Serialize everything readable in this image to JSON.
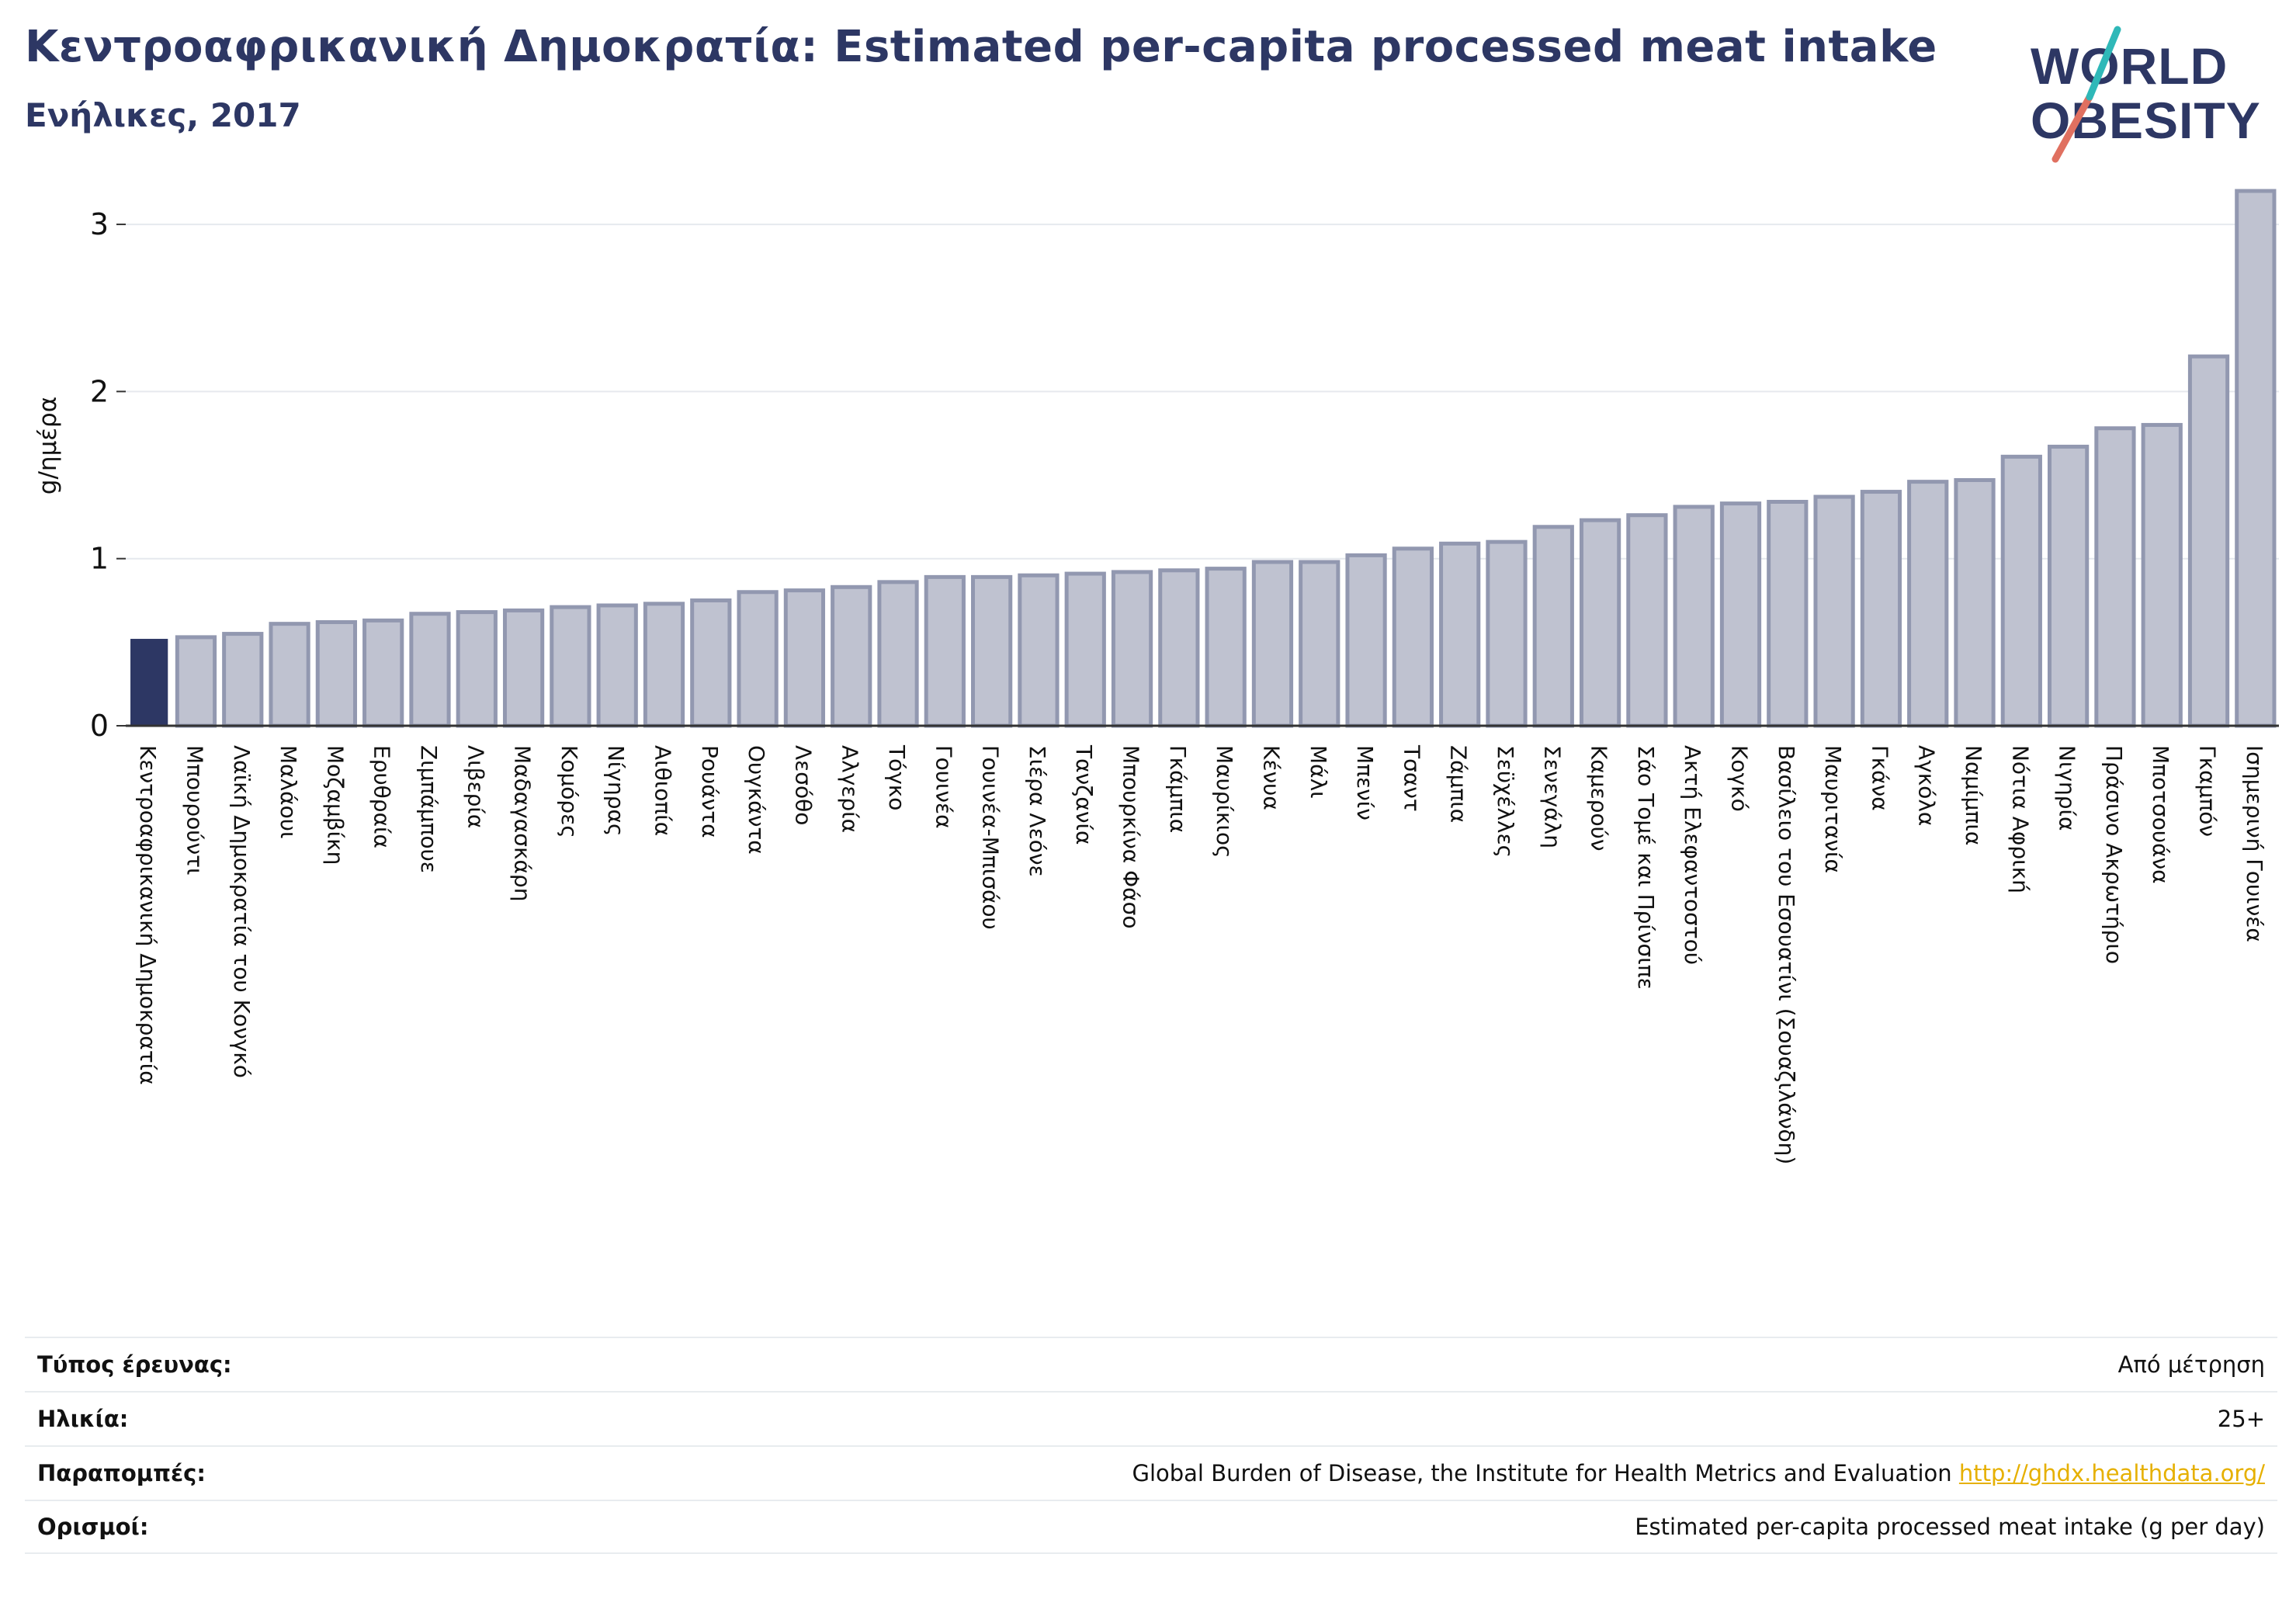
{
  "title": "Κεντροαφρικανική Δημοκρατία: Estimated per-capita processed meat intake",
  "subtitle": "Ενήλικες, 2017",
  "logo": {
    "line1": "WORLD",
    "line2": "OBESITY"
  },
  "colors": {
    "highlight": "#2d3764",
    "bar_fill": "#bfc2d0",
    "bar_stroke": "#9298b0",
    "grid": "#e6e9ee",
    "title": "#2d3764",
    "link": "#e6b000"
  },
  "chart_data": {
    "type": "bar",
    "ylabel": "g/ημέρα",
    "ylim": [
      0,
      3.2
    ],
    "yticks": [
      0,
      1,
      2,
      3
    ],
    "grid": true,
    "highlight_index": 0,
    "categories": [
      "Κεντροαφρικανική Δημοκρατία",
      "Μπουρούντι",
      "Λαϊκή Δημοκρατία του Κονγκό",
      "Μαλάουι",
      "Μοζαμβίκη",
      "Ερυθραία",
      "Ζιμπάμπουε",
      "Λιβερία",
      "Μαδαγασκάρη",
      "Κομόρες",
      "Νίγηρας",
      "Αιθιοπία",
      "Ρουάντα",
      "Ουγκάντα",
      "Λεσόθο",
      "Αλγερία",
      "Τόγκο",
      "Γουινέα",
      "Γουινέα-Μπισάου",
      "Σιέρα Λεόνε",
      "Τανζανία",
      "Μπουρκίνα Φάσο",
      "Γκάμπια",
      "Μαυρίκιος",
      "Κένυα",
      "Μάλι",
      "Μπενίν",
      "Τσαντ",
      "Ζάμπια",
      "Σεϋχέλλες",
      "Σενεγάλη",
      "Καμερούν",
      "Σάο Τομέ και Πρίνσιπε",
      "Ακτή Ελεφαντοστού",
      "Κογκό",
      "Βασίλειο του Εσουατίνι (Σουαζιλάνδη)",
      "Μαυριτανία",
      "Γκάνα",
      "Αγκόλα",
      "Ναμίμπια",
      "Νότια Αφρική",
      "Νιγηρία",
      "Πράσινο Ακρωτήριο",
      "Μποτσουάνα",
      "Γκαμπόν",
      "Ισημερινή Γουινέα"
    ],
    "values": [
      0.52,
      0.53,
      0.55,
      0.61,
      0.62,
      0.63,
      0.67,
      0.68,
      0.69,
      0.71,
      0.72,
      0.73,
      0.75,
      0.8,
      0.81,
      0.83,
      0.86,
      0.89,
      0.89,
      0.9,
      0.91,
      0.92,
      0.93,
      0.94,
      0.98,
      0.98,
      1.02,
      1.06,
      1.09,
      1.1,
      1.19,
      1.23,
      1.26,
      1.31,
      1.33,
      1.34,
      1.37,
      1.4,
      1.46,
      1.47,
      1.61,
      1.67,
      1.78,
      1.8,
      2.21,
      3.2
    ]
  },
  "meta": {
    "rows": [
      {
        "label": "Τύπος έρευνας:",
        "value": "Από μέτρηση"
      },
      {
        "label": "Ηλικία:",
        "value": "25+"
      },
      {
        "label": "Παραπομπές:",
        "value": "Global Burden of Disease, the Institute for Health Metrics and Evaluation",
        "link": "http://ghdx.healthdata.org/"
      },
      {
        "label": "Ορισμοί:",
        "value": "Estimated per-capita processed meat intake (g per day)"
      }
    ]
  }
}
